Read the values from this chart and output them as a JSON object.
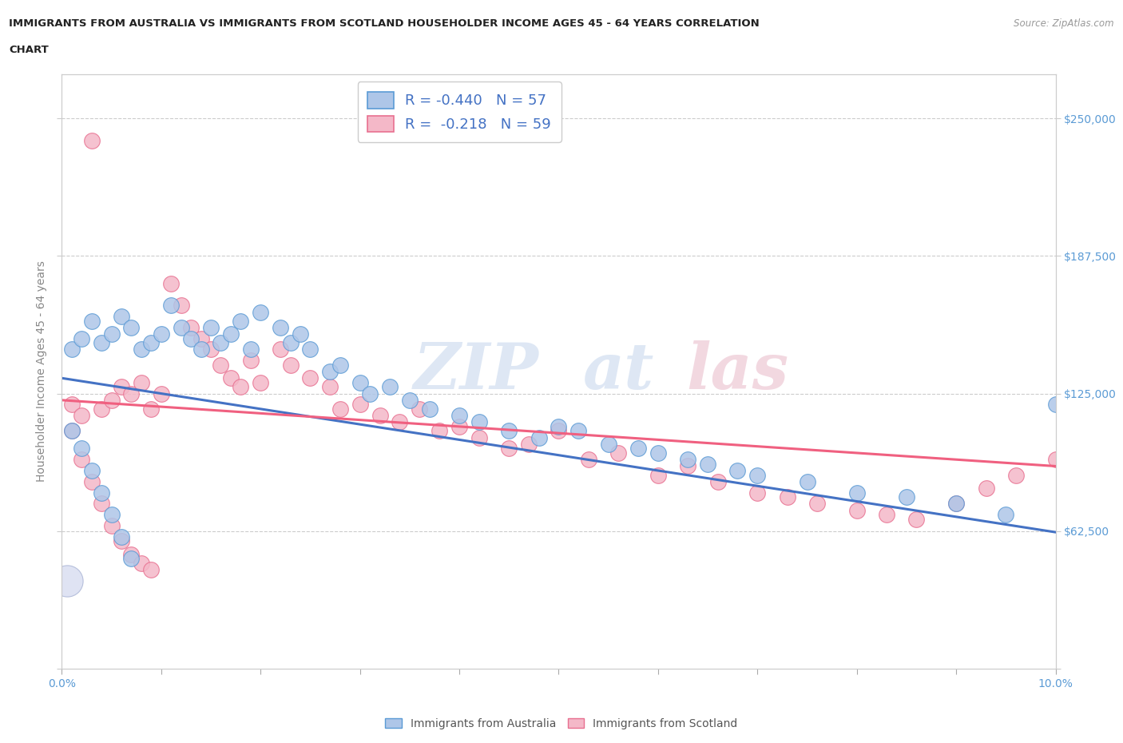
{
  "title_line1": "IMMIGRANTS FROM AUSTRALIA VS IMMIGRANTS FROM SCOTLAND HOUSEHOLDER INCOME AGES 45 - 64 YEARS CORRELATION",
  "title_line2": "CHART",
  "source_text": "Source: ZipAtlas.com",
  "ylabel": "Householder Income Ages 45 - 64 years",
  "xlim": [
    0.0,
    0.1
  ],
  "ylim": [
    0,
    270000
  ],
  "xticks": [
    0.0,
    0.01,
    0.02,
    0.03,
    0.04,
    0.05,
    0.06,
    0.07,
    0.08,
    0.09,
    0.1
  ],
  "xticklabels": [
    "0.0%",
    "",
    "",
    "",
    "",
    "",
    "",
    "",
    "",
    "",
    "10.0%"
  ],
  "yticks": [
    0,
    62500,
    125000,
    187500,
    250000
  ],
  "right_yticklabels": [
    "",
    "$62,500",
    "$125,000",
    "$187,500",
    "$250,000"
  ],
  "australia_color": "#aec6e8",
  "scotland_color": "#f4b8c8",
  "australia_edge": "#5b9bd5",
  "scotland_edge": "#e87090",
  "trendline_australia": "#4472c4",
  "trendline_scotland": "#f06080",
  "legend_label_aus": "R = -0.440   N = 57",
  "legend_label_sco": "R =  -0.218   N = 59",
  "grid_color": "#cccccc",
  "background_color": "#ffffff",
  "aus_scatter_x": [
    0.001,
    0.002,
    0.003,
    0.004,
    0.005,
    0.006,
    0.007,
    0.008,
    0.009,
    0.01,
    0.011,
    0.012,
    0.013,
    0.014,
    0.015,
    0.016,
    0.017,
    0.018,
    0.019,
    0.02,
    0.022,
    0.023,
    0.024,
    0.025,
    0.027,
    0.028,
    0.03,
    0.031,
    0.033,
    0.035,
    0.037,
    0.04,
    0.042,
    0.045,
    0.048,
    0.05,
    0.052,
    0.055,
    0.058,
    0.06,
    0.063,
    0.065,
    0.068,
    0.07,
    0.075,
    0.08,
    0.085,
    0.09,
    0.095,
    0.1,
    0.001,
    0.002,
    0.003,
    0.004,
    0.005,
    0.006,
    0.007
  ],
  "aus_scatter_y": [
    145000,
    150000,
    158000,
    148000,
    152000,
    160000,
    155000,
    145000,
    148000,
    152000,
    165000,
    155000,
    150000,
    145000,
    155000,
    148000,
    152000,
    158000,
    145000,
    162000,
    155000,
    148000,
    152000,
    145000,
    135000,
    138000,
    130000,
    125000,
    128000,
    122000,
    118000,
    115000,
    112000,
    108000,
    105000,
    110000,
    108000,
    102000,
    100000,
    98000,
    95000,
    93000,
    90000,
    88000,
    85000,
    80000,
    78000,
    75000,
    70000,
    120000,
    108000,
    100000,
    90000,
    80000,
    70000,
    60000,
    50000
  ],
  "sco_scatter_x": [
    0.001,
    0.002,
    0.003,
    0.004,
    0.005,
    0.006,
    0.007,
    0.008,
    0.009,
    0.01,
    0.011,
    0.012,
    0.013,
    0.014,
    0.015,
    0.016,
    0.017,
    0.018,
    0.019,
    0.02,
    0.022,
    0.023,
    0.025,
    0.027,
    0.028,
    0.03,
    0.032,
    0.034,
    0.036,
    0.038,
    0.04,
    0.042,
    0.045,
    0.047,
    0.05,
    0.053,
    0.056,
    0.06,
    0.063,
    0.066,
    0.07,
    0.073,
    0.076,
    0.08,
    0.083,
    0.086,
    0.09,
    0.093,
    0.096,
    0.1,
    0.001,
    0.002,
    0.003,
    0.004,
    0.005,
    0.006,
    0.007,
    0.008,
    0.009
  ],
  "sco_scatter_y": [
    120000,
    115000,
    240000,
    118000,
    122000,
    128000,
    125000,
    130000,
    118000,
    125000,
    175000,
    165000,
    155000,
    150000,
    145000,
    138000,
    132000,
    128000,
    140000,
    130000,
    145000,
    138000,
    132000,
    128000,
    118000,
    120000,
    115000,
    112000,
    118000,
    108000,
    110000,
    105000,
    100000,
    102000,
    108000,
    95000,
    98000,
    88000,
    92000,
    85000,
    80000,
    78000,
    75000,
    72000,
    70000,
    68000,
    75000,
    82000,
    88000,
    95000,
    108000,
    95000,
    85000,
    75000,
    65000,
    58000,
    52000,
    48000,
    45000
  ],
  "aus_trendline_x0": 0.0,
  "aus_trendline_x1": 0.1,
  "aus_trendline_y0": 132000,
  "aus_trendline_y1": 62000,
  "sco_trendline_x0": 0.0,
  "sco_trendline_x1": 0.1,
  "sco_trendline_y0": 122000,
  "sco_trendline_y1": 92000
}
